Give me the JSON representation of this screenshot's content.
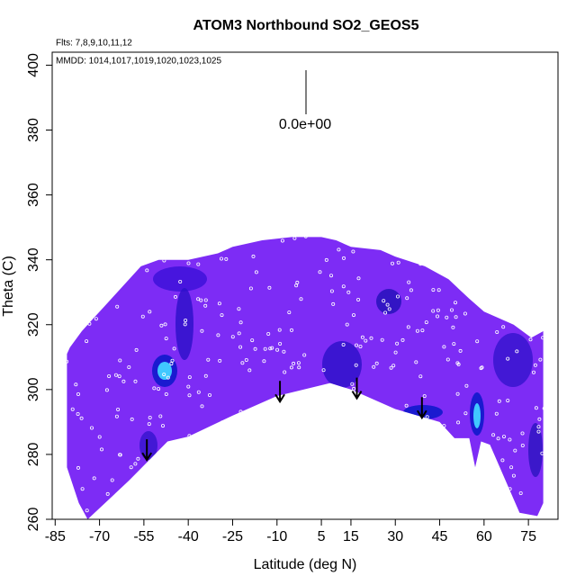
{
  "chart_data": {
    "type": "contour",
    "title": "ATOM3 Northbound SO2_GEOS5",
    "subtitle": "Flts: 7,8,9,10,11,12",
    "note": "MMDD: 1014,1017,1019,1020,1023,1025",
    "annotation": "0.0e+00",
    "xlabel": "Latitude (deg N)",
    "ylabel": "Theta (C)",
    "xlim": [
      -86,
      85
    ],
    "ylim": [
      260,
      404
    ],
    "xticks": [
      -85,
      -70,
      -55,
      -40,
      -25,
      -10,
      5,
      15,
      30,
      45,
      60,
      75
    ],
    "yticks": [
      260,
      280,
      300,
      320,
      340,
      360,
      380,
      400
    ],
    "color": "#7d2cf5",
    "envelope_top": {
      "x": [
        -81,
        -80,
        -76,
        -72,
        -68,
        -64,
        -60,
        -56,
        -50,
        -40,
        -30,
        -25,
        -15,
        -5,
        5,
        10,
        15,
        25,
        30,
        40,
        48,
        55,
        60,
        65,
        70,
        76,
        80
      ],
      "y": [
        311,
        313,
        318,
        322,
        326,
        330,
        334,
        338,
        340,
        340,
        342,
        344,
        346,
        347,
        347,
        346,
        344,
        343,
        341,
        338,
        334,
        328,
        324,
        322,
        320,
        316,
        318
      ]
    },
    "envelope_bottom": {
      "x": [
        -81,
        -77,
        -74,
        -60,
        -47,
        -40,
        -25,
        -10,
        8,
        15,
        30,
        45,
        50,
        55,
        57,
        59,
        62,
        72,
        78,
        80
      ],
      "y": [
        276,
        265,
        260,
        272,
        284,
        285.5,
        292,
        298,
        302,
        300,
        294,
        290,
        285,
        285,
        276,
        284,
        283,
        262,
        261,
        265
      ]
    },
    "arrows": {
      "x": [
        -54,
        -9,
        17,
        39
      ],
      "y": [
        283,
        301,
        302,
        296
      ]
    }
  }
}
